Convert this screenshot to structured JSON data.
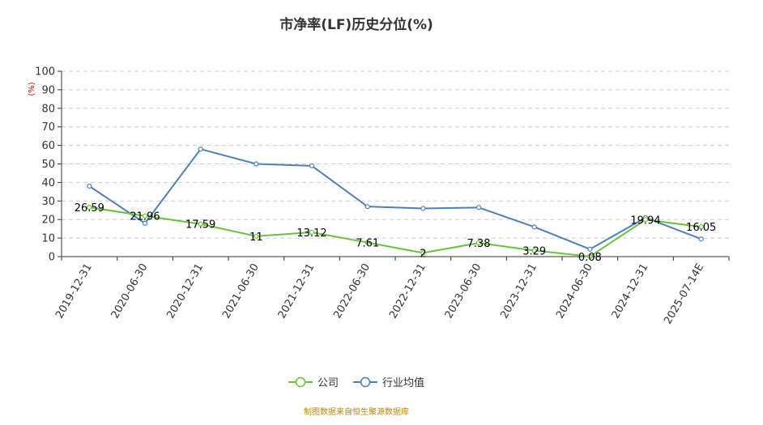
{
  "chart_data": {
    "type": "line",
    "title": "市净率(LF)历史分位(%)",
    "ylabel": "(%)",
    "xlabel": "",
    "ylim": [
      0,
      100
    ],
    "yticks": [
      0,
      10,
      20,
      30,
      40,
      50,
      60,
      70,
      80,
      90,
      100
    ],
    "grid": true,
    "legend_position": "bottom",
    "categories": [
      "2019-12-31",
      "2020-06-30",
      "2020-12-31",
      "2021-06-30",
      "2021-12-31",
      "2022-06-30",
      "2022-12-31",
      "2023-06-30",
      "2023-12-31",
      "2024-06-30",
      "2024-12-31",
      "2025-07-14E"
    ],
    "series": [
      {
        "name": "公司",
        "color": "#67c23a",
        "labeled": true,
        "values": [
          26.59,
          21.96,
          17.59,
          11,
          13.12,
          7.61,
          2,
          7.38,
          3.29,
          0.08,
          19.94,
          16.05
        ]
      },
      {
        "name": "行业均值",
        "color": "#4f7fb8",
        "labeled": false,
        "values": [
          38,
          18,
          58,
          50,
          49,
          27,
          26,
          26.5,
          16,
          4,
          21,
          9.5
        ]
      }
    ],
    "source_note": "制图数据来自恒生聚源数据库"
  },
  "colors": {
    "axis": "#333333",
    "grid": "#cccccc",
    "ylabel": "#cc0000",
    "source_note": "#b8860b"
  }
}
